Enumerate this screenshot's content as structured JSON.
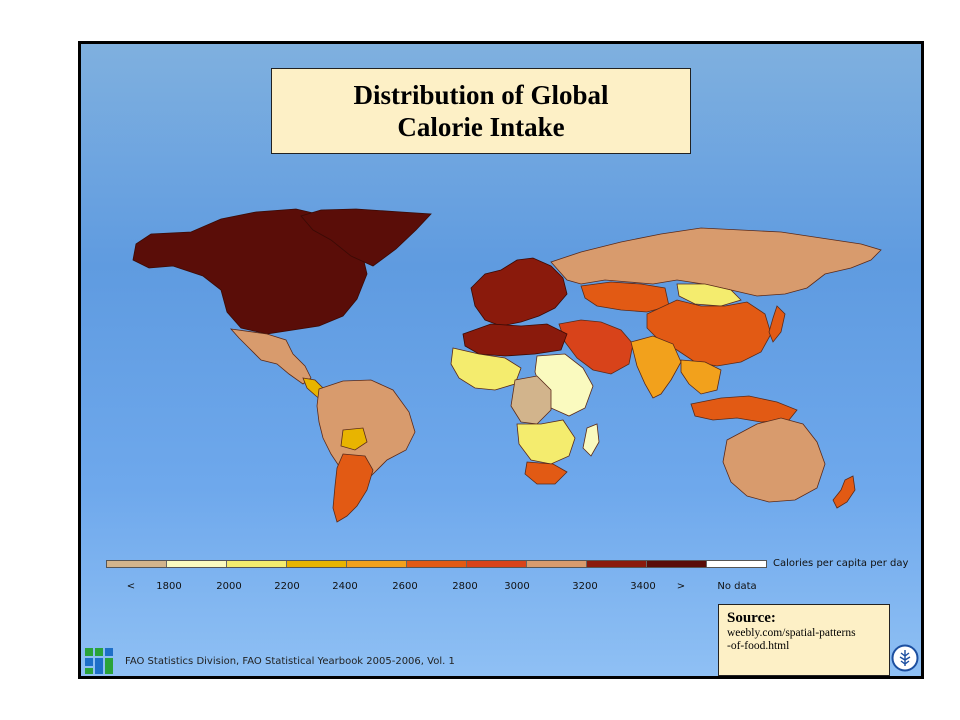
{
  "title": {
    "line1": "Distribution of Global",
    "line2": "Calorie Intake"
  },
  "legend": {
    "title": "Calories per capita per day",
    "colors": [
      "#d2b48c",
      "#fafabf",
      "#f4ec6e",
      "#e8b400",
      "#f2a11c",
      "#e25a14",
      "#d8431a",
      "#d89b6d",
      "#8a1a0c",
      "#5a0d08",
      "#ffffff"
    ],
    "ticks": [
      "<",
      "1800",
      "2000",
      "2200",
      "2400",
      "2600",
      "2800",
      "3000",
      "3200",
      "3400",
      ">",
      "No data"
    ]
  },
  "source": {
    "label": "Source:",
    "line1": "weebly.com/spatial-patterns",
    "line2": "-of-food.html"
  },
  "footer": {
    "text": "FAO Statistics Division, FAO Statistical Yearbook 2005-2006, Vol. 1"
  },
  "regions": [
    {
      "name": "North America",
      "color": "#5a0d08"
    },
    {
      "name": "Greenland",
      "color": "#5a0d08"
    },
    {
      "name": "Mexico",
      "color": "#d89b6d"
    },
    {
      "name": "Central America",
      "color": "#e8b400"
    },
    {
      "name": "South America",
      "color": "#d89b6d"
    },
    {
      "name": "Argentina",
      "color": "#e25a14"
    },
    {
      "name": "Bolivia",
      "color": "#e8b400"
    },
    {
      "name": "Western Europe",
      "color": "#8a1a0c"
    },
    {
      "name": "Russia",
      "color": "#d89b6d"
    },
    {
      "name": "North Africa",
      "color": "#8a1a0c"
    },
    {
      "name": "West Africa",
      "color": "#f4ec6e"
    },
    {
      "name": "East Africa",
      "color": "#fafabf"
    },
    {
      "name": "Central Africa",
      "color": "#d2b48c"
    },
    {
      "name": "Southern Africa",
      "color": "#f4ec6e"
    },
    {
      "name": "South Africa",
      "color": "#e25a14"
    },
    {
      "name": "Middle East",
      "color": "#d8431a"
    },
    {
      "name": "Kazakhstan",
      "color": "#e25a14"
    },
    {
      "name": "Mongolia",
      "color": "#f4ec6e"
    },
    {
      "name": "China",
      "color": "#e25a14"
    },
    {
      "name": "India",
      "color": "#f2a11c"
    },
    {
      "name": "Southeast Asia",
      "color": "#f2a11c"
    },
    {
      "name": "Indonesia",
      "color": "#e25a14"
    },
    {
      "name": "Australia",
      "color": "#d89b6d"
    },
    {
      "name": "New Zealand",
      "color": "#e25a14"
    },
    {
      "name": "Japan",
      "color": "#e25a14"
    },
    {
      "name": "Madagascar",
      "color": "#fafabf"
    }
  ]
}
